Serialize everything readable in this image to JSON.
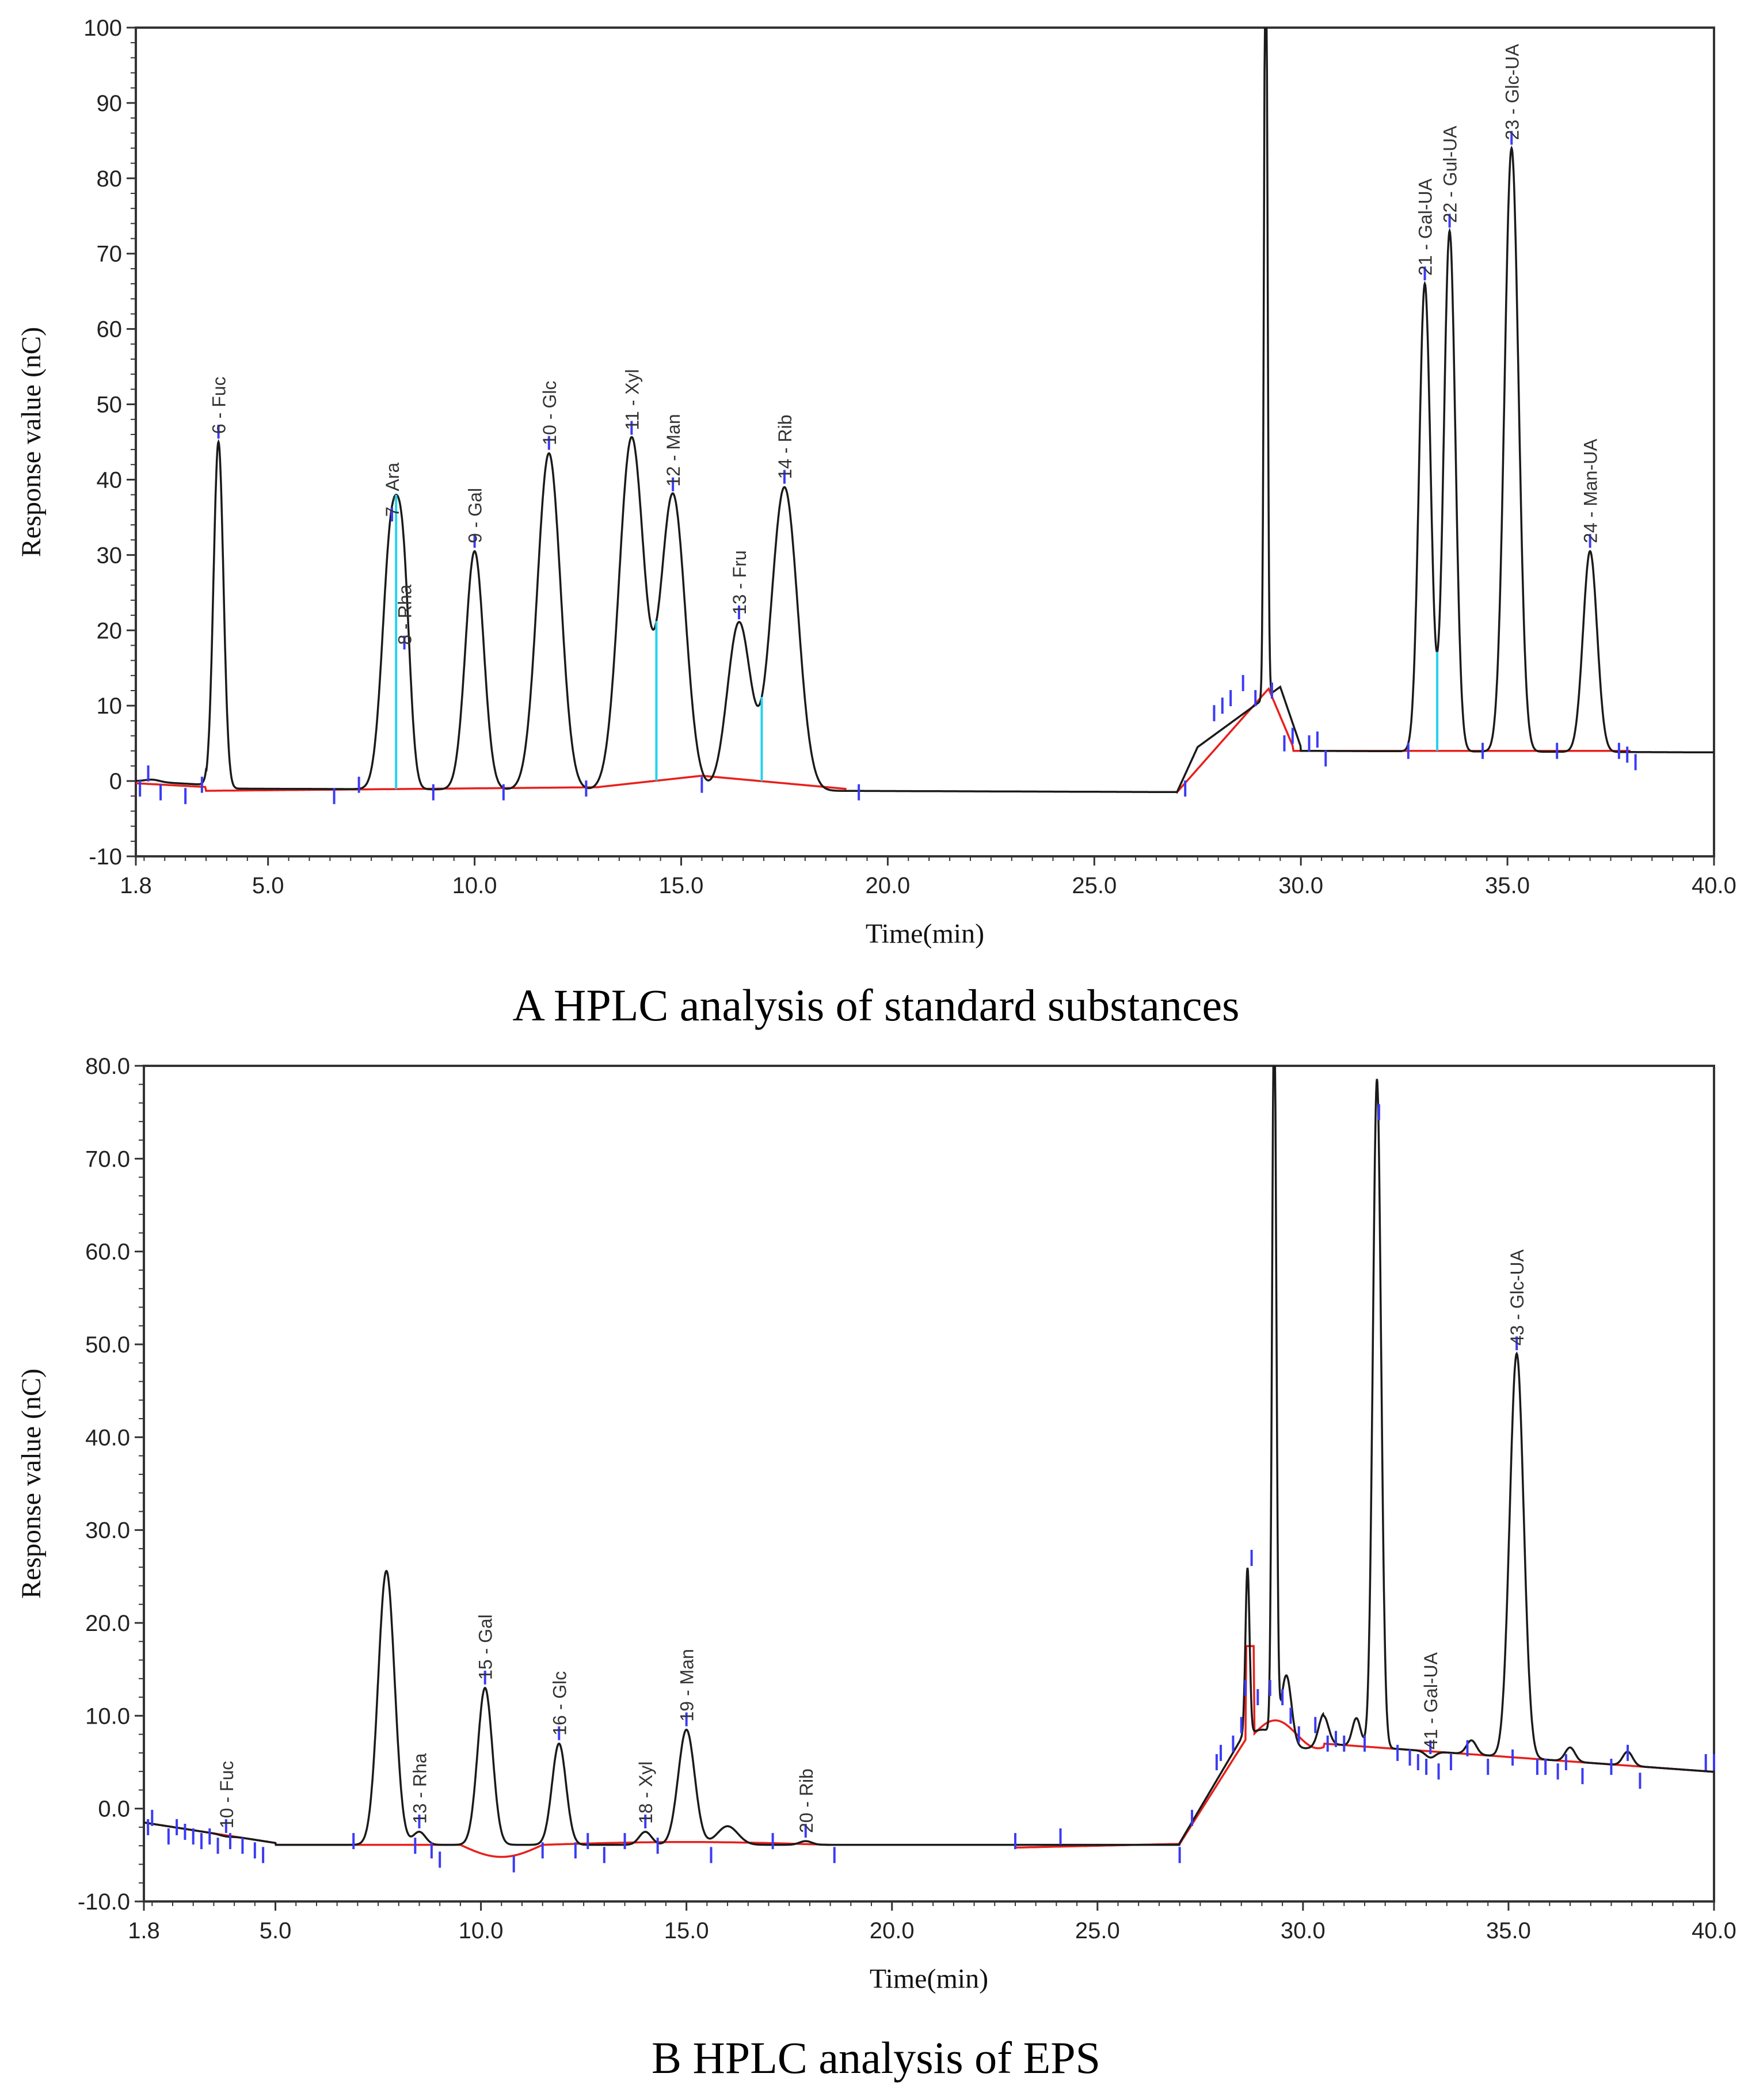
{
  "chart_data": [
    {
      "type": "line",
      "caption": "A HPLC analysis of standard substances",
      "xlabel": "Time(min)",
      "ylabel": "Response value (nC)",
      "xlim": [
        1.8,
        40.0
      ],
      "ylim": [
        -10,
        100
      ],
      "x_ticks": [
        1.8,
        5.0,
        10.0,
        15.0,
        20.0,
        25.0,
        30.0,
        35.0,
        40.0
      ],
      "x_tick_labels": [
        "1.8",
        "5.0",
        "10.0",
        "15.0",
        "20.0",
        "25.0",
        "30.0",
        "35.0",
        "40.0"
      ],
      "y_ticks": [
        -10,
        0,
        10,
        20,
        30,
        40,
        50,
        60,
        70,
        80,
        90,
        100
      ],
      "y_tick_labels": [
        "-10",
        "0",
        "10",
        "20",
        "30",
        "40",
        "50",
        "60",
        "70",
        "80",
        "90",
        "100"
      ],
      "colors": {
        "signal": "#1a1a1a",
        "baseline": "#e8201c",
        "marker": "#3b3bf5",
        "drop": "#22d3ee"
      },
      "peaks": [
        {
          "label": "6 - Fuc",
          "t": 3.8,
          "h": 45
        },
        {
          "label": "7 - Ara",
          "t": 8.0,
          "h": 34
        },
        {
          "label": "8 - Rha",
          "t": 8.3,
          "h": 17
        },
        {
          "label": "9 - Gal",
          "t": 10.0,
          "h": 30.5
        },
        {
          "label": "10 - Glc",
          "t": 11.8,
          "h": 43.5
        },
        {
          "label": "11 - Xyl",
          "t": 13.8,
          "h": 45.5
        },
        {
          "label": "12 - Man",
          "t": 14.8,
          "h": 38
        },
        {
          "label": "13 - Fru",
          "t": 16.4,
          "h": 21
        },
        {
          "label": "14 - Rib",
          "t": 17.5,
          "h": 39
        },
        {
          "label": "21 - Gal-UA",
          "t": 33.0,
          "h": 66
        },
        {
          "label": "22 - Gul-UA",
          "t": 33.6,
          "h": 73
        },
        {
          "label": "23 - Glc-UA",
          "t": 35.1,
          "h": 84
        },
        {
          "label": "24 - Man-UA",
          "t": 37.0,
          "h": 30.5
        }
      ]
    },
    {
      "type": "line",
      "caption": "B HPLC analysis of EPS",
      "xlabel": "Time(min)",
      "ylabel": "Response value (nC)",
      "xlim": [
        1.8,
        40.0
      ],
      "ylim": [
        -10,
        80
      ],
      "x_ticks": [
        1.8,
        5.0,
        10.0,
        15.0,
        20.0,
        25.0,
        30.0,
        35.0,
        40.0
      ],
      "x_tick_labels": [
        "1.8",
        "5.0",
        "10.0",
        "15.0",
        "20.0",
        "25.0",
        "30.0",
        "35.0",
        "40.0"
      ],
      "y_ticks": [
        -10,
        0,
        10,
        20,
        30,
        40,
        50,
        60,
        70,
        80
      ],
      "y_tick_labels": [
        "-10.0",
        "0.0",
        "10.0",
        "20.0",
        "30.0",
        "40.0",
        "50.0",
        "60.0",
        "70.0",
        "80.0"
      ],
      "colors": {
        "signal": "#1a1a1a",
        "baseline": "#e8201c",
        "marker": "#3b3bf5"
      },
      "peaks": [
        {
          "label": "10 - Fuc",
          "t": 3.8,
          "h": -3
        },
        {
          "label": "13 - Rha",
          "t": 8.5,
          "h": -2.5
        },
        {
          "label": "15 - Gal",
          "t": 10.1,
          "h": 13
        },
        {
          "label": "16 - Glc",
          "t": 11.9,
          "h": 7
        },
        {
          "label": "18 - Xyl",
          "t": 14.0,
          "h": -2.5
        },
        {
          "label": "19 - Man",
          "t": 15.0,
          "h": 8.5
        },
        {
          "label": "20 - Rib",
          "t": 17.9,
          "h": -3.5
        },
        {
          "label": "41 - Gal-UA",
          "t": 33.1,
          "h": 5.5
        },
        {
          "label": "43 - Glc-UA",
          "t": 35.2,
          "h": 49
        }
      ]
    }
  ]
}
